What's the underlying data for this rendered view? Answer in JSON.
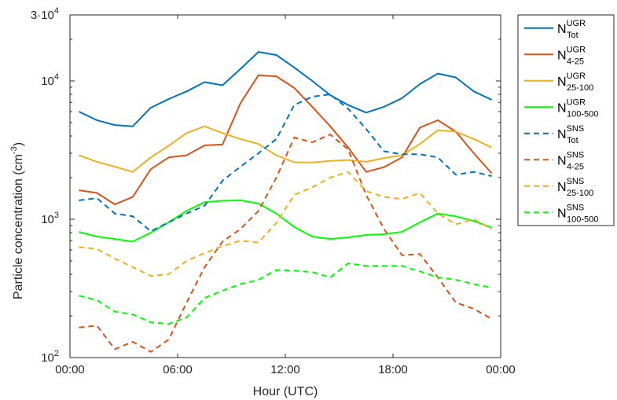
{
  "chart_data": {
    "type": "line",
    "xlabel": "Hour (UTC)",
    "ylabel": "Particle concentration (cm⁻³)",
    "ylabel_main": "Particle concentration (cm",
    "ylabel_sup": "-3",
    "ylabel_end": ")",
    "yscale": "log",
    "xlim": [
      0,
      24
    ],
    "ylim": [
      100,
      30000
    ],
    "x_ticks": [
      0,
      6,
      12,
      18,
      24
    ],
    "x_tick_labels": [
      "00:00",
      "06:00",
      "12:00",
      "18:00",
      "00:00"
    ],
    "y_ticks": [
      100,
      1000,
      10000,
      30000
    ],
    "y_tick_labels": [
      "10",
      "10",
      "10",
      "3·10"
    ],
    "y_tick_exponents": [
      "2",
      "3",
      "4",
      "4"
    ],
    "grid": false,
    "legend_position": "outside-right",
    "x": [
      0.5,
      1.5,
      2.5,
      3.5,
      4.5,
      5.5,
      6.5,
      7.5,
      8.5,
      9.5,
      10.5,
      11.5,
      12.5,
      13.5,
      14.5,
      15.5,
      16.5,
      17.5,
      18.5,
      19.5,
      20.5,
      21.5,
      22.5,
      23.5
    ],
    "series": [
      {
        "label": "N",
        "sup": "UGR",
        "sub": "Tot",
        "color": "#0072bd",
        "style": "solid",
        "values": [
          6000,
          5200,
          4800,
          4700,
          6400,
          7400,
          8400,
          9800,
          9300,
          12200,
          16200,
          15400,
          12500,
          10000,
          7900,
          6700,
          5900,
          6500,
          7500,
          9500,
          11300,
          10600,
          8400,
          7300
        ]
      },
      {
        "label": "N",
        "sup": "UGR",
        "sub": "4-25",
        "color": "#d95319",
        "style": "solid",
        "values": [
          1620,
          1550,
          1280,
          1450,
          2300,
          2800,
          2900,
          3420,
          3470,
          6900,
          11000,
          10800,
          8900,
          6500,
          4700,
          3300,
          2200,
          2380,
          2800,
          4600,
          5200,
          4300,
          3000,
          2150
        ]
      },
      {
        "label": "N",
        "sup": "UGR",
        "sub": "25-100",
        "color": "#edb120",
        "style": "solid",
        "values": [
          2900,
          2600,
          2400,
          2200,
          2800,
          3400,
          4200,
          4700,
          4200,
          3800,
          3500,
          2900,
          2580,
          2570,
          2640,
          2680,
          2600,
          2770,
          2900,
          3500,
          4400,
          4300,
          3800,
          3300
        ]
      },
      {
        "label": "N",
        "sup": "UGR",
        "sub": "100-500",
        "color": "#00ff00",
        "style": "solid",
        "values": [
          810,
          750,
          720,
          690,
          800,
          950,
          1150,
          1330,
          1360,
          1370,
          1300,
          1100,
          880,
          750,
          720,
          740,
          770,
          780,
          810,
          950,
          1100,
          1050,
          970,
          870
        ]
      },
      {
        "label": "N",
        "sup": "SNS",
        "sub": "Tot",
        "color": "#0072bd",
        "style": "dashed",
        "values": [
          1370,
          1420,
          1100,
          1050,
          820,
          950,
          1100,
          1250,
          1900,
          2400,
          3000,
          3800,
          6700,
          7700,
          8000,
          6300,
          4500,
          3100,
          2950,
          2950,
          2800,
          2100,
          2200,
          2050
        ]
      },
      {
        "label": "N",
        "sup": "SNS",
        "sub": "4-25",
        "color": "#d95319",
        "style": "dashed",
        "values": [
          165,
          170,
          115,
          130,
          110,
          135,
          250,
          450,
          690,
          850,
          1150,
          2000,
          3900,
          3600,
          4100,
          3200,
          1500,
          850,
          550,
          560,
          380,
          250,
          225,
          190
        ]
      },
      {
        "label": "N",
        "sup": "SNS",
        "sub": "25-100",
        "color": "#edb120",
        "style": "dashed",
        "values": [
          630,
          610,
          520,
          450,
          390,
          400,
          500,
          570,
          640,
          700,
          680,
          940,
          1500,
          1700,
          2000,
          2200,
          1600,
          1450,
          1400,
          1550,
          1100,
          920,
          1000,
          850
        ]
      },
      {
        "label": "N",
        "sup": "SNS",
        "sub": "100-500",
        "color": "#00ff00",
        "style": "dashed",
        "values": [
          280,
          260,
          215,
          205,
          180,
          175,
          195,
          270,
          305,
          340,
          365,
          430,
          425,
          415,
          380,
          480,
          460,
          460,
          460,
          420,
          380,
          365,
          340,
          320
        ]
      }
    ]
  }
}
